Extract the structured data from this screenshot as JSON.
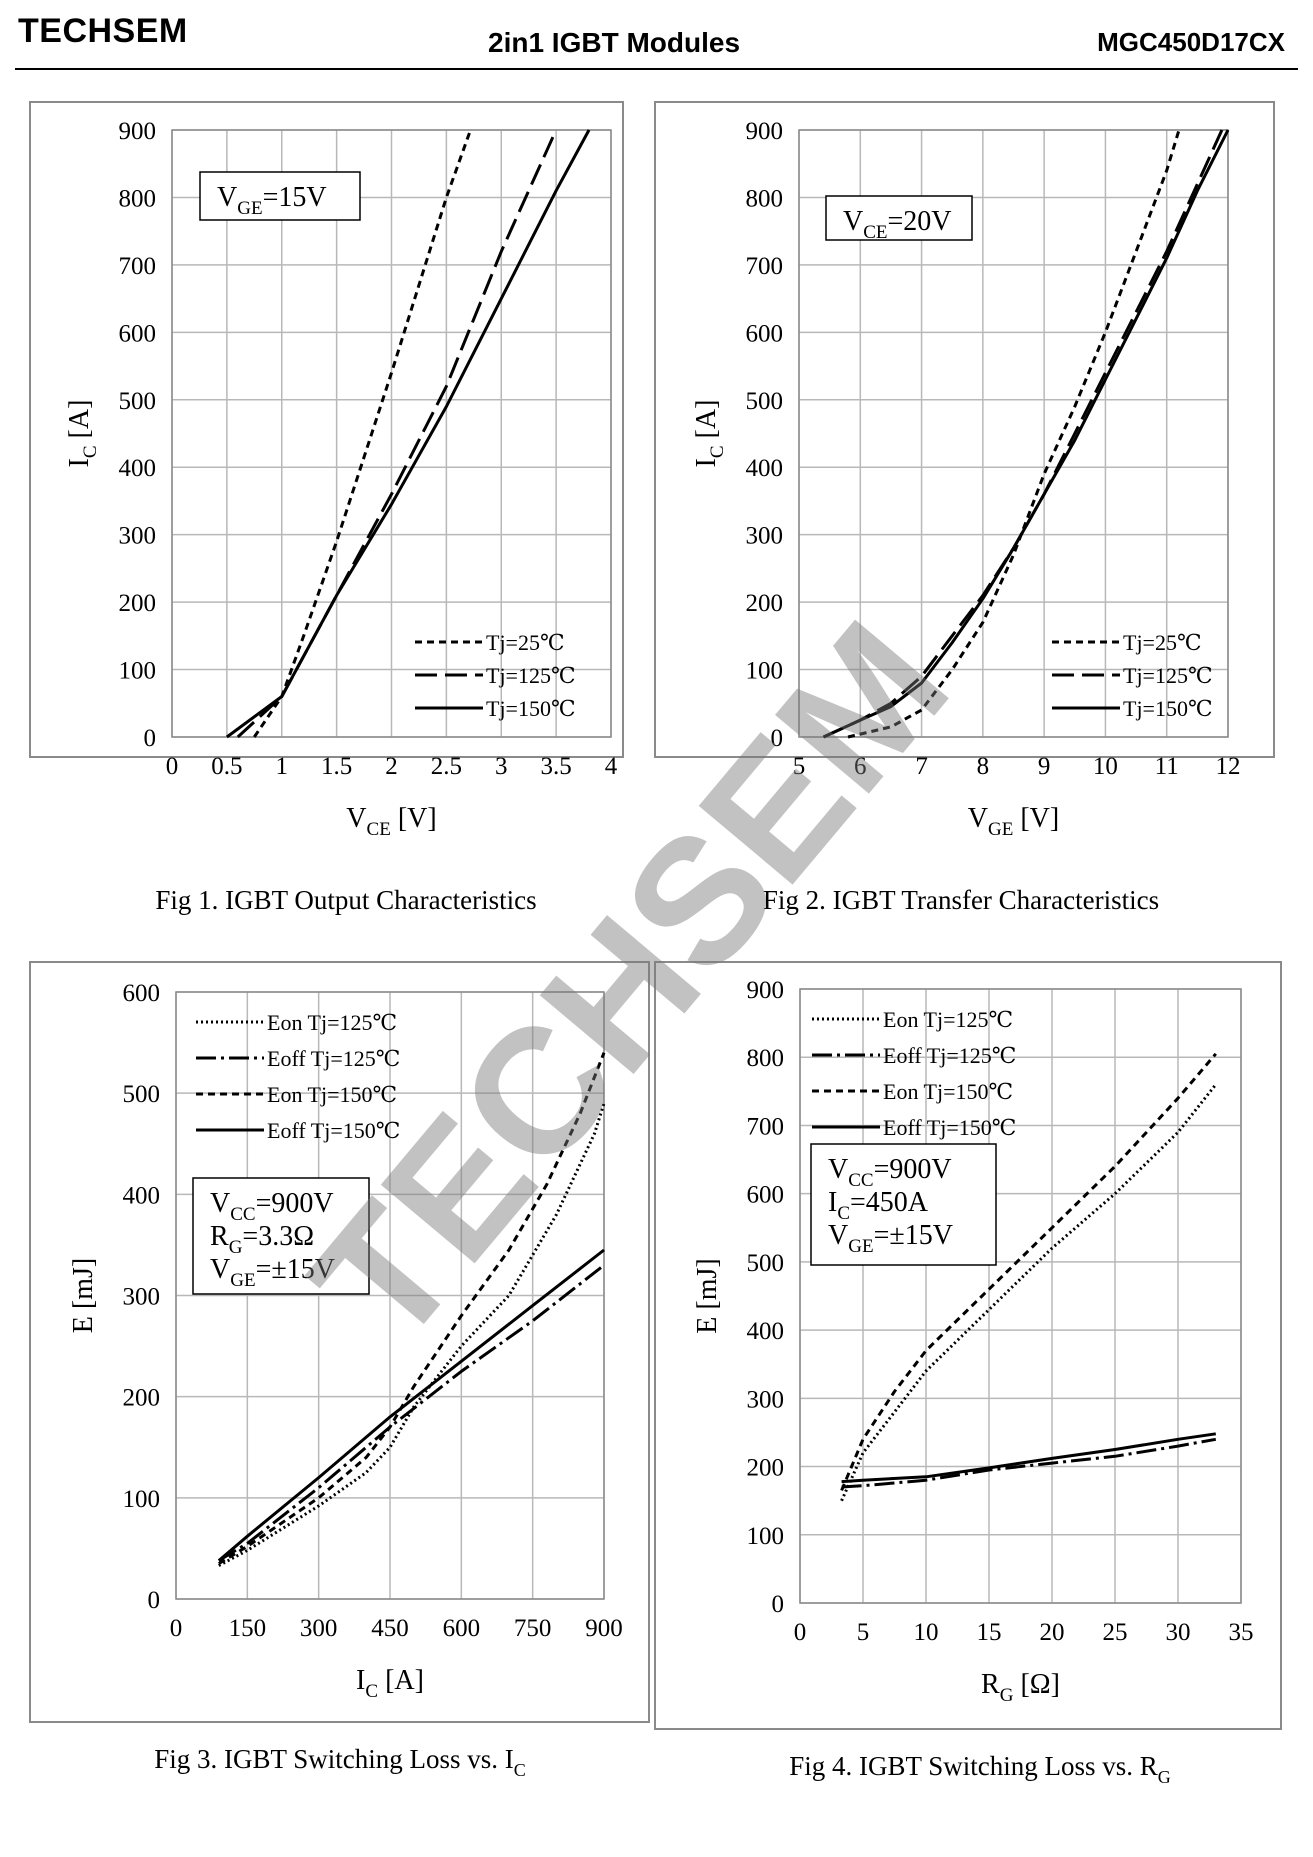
{
  "header": {
    "brand": "TECHSEM",
    "title": "2in1  IGBT  Modules",
    "part_number": "MGC450D17CX"
  },
  "watermark": "TECHSEM",
  "chart_data": [
    {
      "id": "fig1",
      "type": "line",
      "caption": "Fig 1. IGBT Output Characteristics",
      "xlabel": {
        "main": "V",
        "sub": "CE",
        "unit": "[V]"
      },
      "ylabel": {
        "main": "I",
        "sub": "C",
        "unit": "[A]"
      },
      "xlim": [
        0,
        4
      ],
      "ylim": [
        0,
        900
      ],
      "xticks": [
        0,
        0.5,
        1,
        1.5,
        2,
        2.5,
        3,
        3.5,
        4
      ],
      "xtick_labels": [
        "0",
        "0.5",
        "1",
        "1.5",
        "2",
        "2.5",
        "3",
        "3.5",
        "4"
      ],
      "yticks": [
        0,
        100,
        200,
        300,
        400,
        500,
        600,
        700,
        800,
        900
      ],
      "ytick_labels": [
        "0",
        "100",
        "200",
        "300",
        "400",
        "500",
        "600",
        "700",
        "800",
        "900"
      ],
      "grid": true,
      "condition": [
        {
          "main": "V",
          "sub": "GE",
          "rest": "=15V"
        }
      ],
      "legend_position": "bottom-right",
      "series": [
        {
          "name": "Tj=25℃",
          "style": "short-dash",
          "x": [
            0.75,
            1.0,
            1.2,
            1.5,
            2.0,
            2.5,
            2.72
          ],
          "y": [
            0,
            60,
            150,
            290,
            540,
            800,
            900
          ]
        },
        {
          "name": "Tj=125℃",
          "style": "long-dash",
          "x": [
            0.6,
            1.0,
            1.5,
            2.0,
            2.5,
            3.0,
            3.5
          ],
          "y": [
            0,
            60,
            210,
            360,
            520,
            720,
            900
          ]
        },
        {
          "name": "Tj=150℃",
          "style": "solid",
          "x": [
            0.5,
            1.0,
            1.5,
            2.0,
            2.5,
            3.0,
            3.5,
            3.8
          ],
          "y": [
            0,
            60,
            210,
            345,
            490,
            650,
            810,
            900
          ]
        }
      ]
    },
    {
      "id": "fig2",
      "type": "line",
      "caption": "Fig 2. IGBT Transfer Characteristics",
      "xlabel": {
        "main": "V",
        "sub": "GE",
        "unit": "[V]"
      },
      "ylabel": {
        "main": "I",
        "sub": "C",
        "unit": "[A]"
      },
      "xlim": [
        5,
        12
      ],
      "ylim": [
        0,
        900
      ],
      "xticks": [
        5,
        6,
        7,
        8,
        9,
        10,
        11,
        12
      ],
      "xtick_labels": [
        "5",
        "6",
        "7",
        "8",
        "9",
        "10",
        "11",
        "12"
      ],
      "yticks": [
        0,
        100,
        200,
        300,
        400,
        500,
        600,
        700,
        800,
        900
      ],
      "ytick_labels": [
        "0",
        "100",
        "200",
        "300",
        "400",
        "500",
        "600",
        "700",
        "800",
        "900"
      ],
      "grid": true,
      "condition": [
        {
          "main": "V",
          "sub": "CE",
          "rest": "=20V"
        }
      ],
      "legend_position": "bottom-right",
      "series": [
        {
          "name": "Tj=25℃",
          "style": "short-dash",
          "x": [
            5.8,
            6.5,
            7.0,
            7.5,
            8.0,
            8.5,
            9.0,
            9.5,
            10.0,
            10.5,
            11.0,
            11.2
          ],
          "y": [
            0,
            15,
            40,
            100,
            170,
            270,
            390,
            490,
            600,
            720,
            840,
            900
          ]
        },
        {
          "name": "Tj=125℃",
          "style": "long-dash",
          "x": [
            5.4,
            6.0,
            6.5,
            7.0,
            7.5,
            8.0,
            8.5,
            9.0,
            9.5,
            10.0,
            10.5,
            11.0,
            11.5,
            11.9
          ],
          "y": [
            0,
            25,
            50,
            90,
            150,
            210,
            280,
            360,
            450,
            540,
            630,
            720,
            820,
            900
          ]
        },
        {
          "name": "Tj=150℃",
          "style": "solid",
          "x": [
            5.4,
            6.0,
            6.5,
            7.0,
            7.5,
            8.0,
            8.5,
            9.0,
            9.5,
            10.0,
            10.5,
            11.0,
            11.5,
            12.0
          ],
          "y": [
            0,
            25,
            45,
            80,
            140,
            205,
            280,
            360,
            440,
            530,
            620,
            710,
            810,
            900
          ]
        }
      ]
    },
    {
      "id": "fig3",
      "type": "line",
      "caption": {
        "text": "Fig 3. IGBT Switching Loss vs. I",
        "sub": "C"
      },
      "xlabel": {
        "main": "I",
        "sub": "C",
        "unit": "[A]"
      },
      "ylabel": {
        "main": "E",
        "sub": "",
        "unit": "[mJ]"
      },
      "xlim": [
        0,
        900
      ],
      "ylim": [
        0,
        600
      ],
      "xticks": [
        0,
        150,
        300,
        450,
        600,
        750,
        900
      ],
      "xtick_labels": [
        "0",
        "150",
        "300",
        "450",
        "600",
        "750",
        "900"
      ],
      "yticks": [
        0,
        100,
        200,
        300,
        400,
        500,
        600
      ],
      "ytick_labels": [
        "0",
        "100",
        "200",
        "300",
        "400",
        "500",
        "600"
      ],
      "grid": true,
      "condition": [
        {
          "main": "V",
          "sub": "CC",
          "rest": "=900V"
        },
        {
          "main": "R",
          "sub": "G",
          "rest": "=3.3Ω"
        },
        {
          "main": "V",
          "sub": "GE",
          "rest": "=±15V"
        }
      ],
      "legend_position": "top-left",
      "series": [
        {
          "name": "Eon Tj=125℃",
          "style": "dotted",
          "x": [
            90,
            150,
            300,
            400,
            450,
            500,
            600,
            700,
            800,
            880,
            900
          ],
          "y": [
            33,
            48,
            92,
            125,
            150,
            190,
            250,
            300,
            380,
            460,
            490
          ]
        },
        {
          "name": "Eoff Tj=125℃",
          "style": "dash-dot",
          "x": [
            90,
            150,
            300,
            450,
            600,
            750,
            900
          ],
          "y": [
            38,
            55,
            110,
            170,
            225,
            275,
            330
          ]
        },
        {
          "name": "Eon Tj=150℃",
          "style": "short-dash",
          "x": [
            90,
            150,
            300,
            400,
            450,
            500,
            600,
            700,
            780,
            850,
            900
          ],
          "y": [
            35,
            52,
            100,
            140,
            170,
            210,
            280,
            345,
            410,
            480,
            540
          ]
        },
        {
          "name": "Eoff Tj=150℃",
          "style": "solid",
          "x": [
            90,
            150,
            300,
            450,
            600,
            750,
            900
          ],
          "y": [
            38,
            62,
            120,
            180,
            235,
            290,
            345
          ]
        }
      ]
    },
    {
      "id": "fig4",
      "type": "line",
      "caption": {
        "text": "Fig 4. IGBT Switching Loss vs. R",
        "sub": "G"
      },
      "xlabel": {
        "main": "R",
        "sub": "G",
        "unit": "[Ω]"
      },
      "ylabel": {
        "main": "E",
        "sub": "",
        "unit": "[mJ]"
      },
      "xlim": [
        0,
        35
      ],
      "ylim": [
        0,
        900
      ],
      "xticks": [
        0,
        5,
        10,
        15,
        20,
        25,
        30,
        35
      ],
      "xtick_labels": [
        "0",
        "5",
        "10",
        "15",
        "20",
        "25",
        "30",
        "35"
      ],
      "yticks": [
        0,
        100,
        200,
        300,
        400,
        500,
        600,
        700,
        800,
        900
      ],
      "ytick_labels": [
        "0",
        "100",
        "200",
        "300",
        "400",
        "500",
        "600",
        "700",
        "800",
        "900"
      ],
      "grid": true,
      "condition": [
        {
          "main": "V",
          "sub": "CC",
          "rest": "=900V"
        },
        {
          "main": "I",
          "sub": "C",
          "rest": "=450A"
        },
        {
          "main": "V",
          "sub": "GE",
          "rest": "=±15V"
        }
      ],
      "legend_position": "top-left",
      "series": [
        {
          "name": "Eon Tj=125℃",
          "style": "dotted",
          "x": [
            3.3,
            5,
            7.5,
            10,
            15,
            20,
            25,
            30,
            33
          ],
          "y": [
            150,
            220,
            280,
            340,
            430,
            520,
            600,
            690,
            760
          ]
        },
        {
          "name": "Eoff Tj=125℃",
          "style": "dash-dot",
          "x": [
            3.3,
            5,
            10,
            15,
            20,
            25,
            30,
            33
          ],
          "y": [
            170,
            172,
            180,
            195,
            205,
            215,
            230,
            240
          ]
        },
        {
          "name": "Eon Tj=150℃",
          "style": "short-dash",
          "x": [
            3.3,
            5,
            7.5,
            10,
            15,
            20,
            25,
            30,
            33
          ],
          "y": [
            165,
            240,
            310,
            370,
            460,
            550,
            640,
            740,
            805
          ]
        },
        {
          "name": "Eoff Tj=150℃",
          "style": "solid",
          "x": [
            3.3,
            5,
            10,
            15,
            20,
            25,
            30,
            33
          ],
          "y": [
            178,
            180,
            185,
            198,
            212,
            225,
            240,
            248
          ]
        }
      ]
    }
  ]
}
